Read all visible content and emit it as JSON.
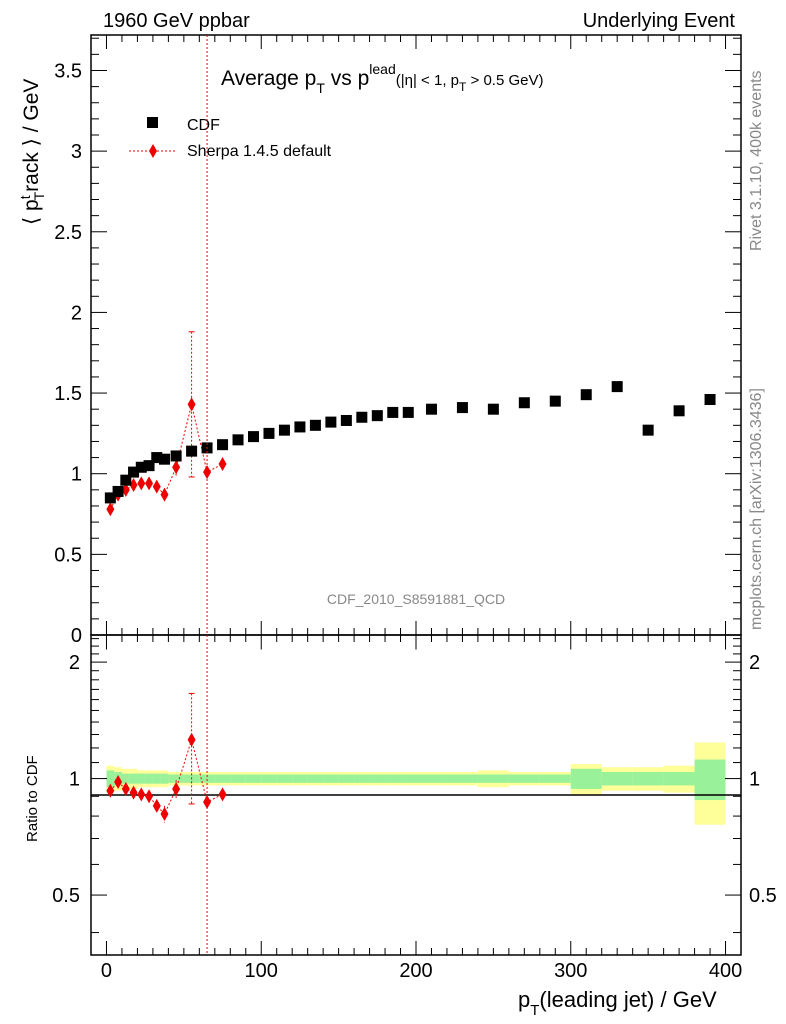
{
  "header": {
    "left": "1960 GeV ppbar",
    "right": "Underlying Event"
  },
  "side": {
    "rivet": "Rivet 3.1.10,  400k events",
    "mcplots": "mcplots.cern.ch [arXiv:1306.3436]"
  },
  "plot": {
    "title_main": "Average p",
    "title_sub_t": "T",
    "title_vs": " vs p",
    "title_lead": "lead",
    "title_cut": "(|η| < 1, p",
    "title_cut_end": " > 0.5 GeV)",
    "ylabel": "⟨ p",
    "ylabel_t": "t",
    "ylabel_T": "T",
    "ylabel_end": "rack ⟩ / GeV",
    "analysis": "CDF_2010_S8591881_QCD",
    "ratio_ylabel": "Ratio to CDF",
    "xlabel": "p",
    "xlabel_sub": "T",
    "xlabel_end": "(leading jet) / GeV",
    "legend": {
      "data": "CDF",
      "mc": "Sherpa 1.4.5 default"
    },
    "xticks": [
      "0",
      "100",
      "200",
      "300",
      "400"
    ],
    "yticks_main": [
      "0",
      "0.5",
      "1",
      "1.5",
      "2",
      "2.5",
      "3",
      "3.5"
    ],
    "yticks_ratio": [
      "0.5",
      "1",
      "2"
    ],
    "yticks_ratio_right": [
      "0.5",
      "1",
      "2"
    ]
  },
  "colors": {
    "data": "#000000",
    "mc": "#ee0000",
    "band_inner": "#99f299",
    "band_outer": "#ffff99"
  },
  "chart_data": {
    "type": "scatter",
    "xlim": [
      -10,
      410
    ],
    "ylim": [
      0,
      3.72
    ],
    "ratio_ylim": [
      0.35,
      2.35
    ],
    "ratio_log": true,
    "vline_x": 65,
    "series": [
      {
        "name": "CDF",
        "x": [
          2.5,
          7.5,
          12.5,
          17.5,
          22.5,
          27.5,
          32.5,
          37.5,
          45,
          55,
          65,
          75,
          85,
          95,
          105,
          115,
          125,
          135,
          145,
          155,
          165,
          175,
          185,
          195,
          210,
          230,
          250,
          270,
          290,
          310,
          330,
          350,
          370,
          390
        ],
        "y": [
          0.85,
          0.89,
          0.96,
          1.01,
          1.04,
          1.05,
          1.1,
          1.09,
          1.11,
          1.14,
          1.16,
          1.18,
          1.21,
          1.23,
          1.25,
          1.27,
          1.29,
          1.3,
          1.32,
          1.33,
          1.35,
          1.36,
          1.38,
          1.38,
          1.4,
          1.41,
          1.4,
          1.44,
          1.45,
          1.49,
          1.54,
          1.27,
          1.39,
          1.46
        ],
        "xerr": [
          2.5,
          2.5,
          2.5,
          2.5,
          2.5,
          2.5,
          2.5,
          2.5,
          5,
          5,
          5,
          5,
          5,
          5,
          5,
          5,
          5,
          5,
          5,
          5,
          5,
          5,
          5,
          5,
          10,
          10,
          10,
          10,
          10,
          10,
          10,
          10,
          10,
          10
        ],
        "rel_err_inner": [
          0.05,
          0.04,
          0.03,
          0.03,
          0.03,
          0.03,
          0.03,
          0.03,
          0.025,
          0.025,
          0.025,
          0.025,
          0.025,
          0.025,
          0.025,
          0.025,
          0.025,
          0.025,
          0.025,
          0.025,
          0.025,
          0.025,
          0.025,
          0.025,
          0.025,
          0.025,
          0.025,
          0.025,
          0.025,
          0.06,
          0.04,
          0.04,
          0.04,
          0.12
        ],
        "rel_err_outer": [
          0.08,
          0.07,
          0.06,
          0.06,
          0.05,
          0.05,
          0.05,
          0.05,
          0.04,
          0.04,
          0.04,
          0.04,
          0.04,
          0.04,
          0.04,
          0.04,
          0.04,
          0.04,
          0.04,
          0.04,
          0.04,
          0.04,
          0.04,
          0.04,
          0.04,
          0.04,
          0.05,
          0.04,
          0.04,
          0.09,
          0.07,
          0.07,
          0.08,
          0.24
        ]
      },
      {
        "name": "Sherpa 1.4.5 default",
        "x": [
          2.5,
          7.5,
          12.5,
          17.5,
          22.5,
          27.5,
          32.5,
          37.5,
          45,
          55,
          65,
          75
        ],
        "y": [
          0.78,
          0.87,
          0.9,
          0.93,
          0.94,
          0.94,
          0.92,
          0.87,
          1.04,
          1.43,
          1.01,
          1.06
        ],
        "yerr": [
          0.02,
          0.02,
          0.02,
          0.02,
          0.02,
          0.02,
          0.03,
          0.04,
          0.06,
          0.45,
          0.02,
          0.02
        ],
        "ratio": [
          0.93,
          0.98,
          0.94,
          0.92,
          0.91,
          0.9,
          0.85,
          0.81,
          0.94,
          1.26,
          0.87,
          0.91
        ],
        "ratio_err": [
          0.02,
          0.02,
          0.02,
          0.02,
          0.02,
          0.02,
          0.03,
          0.04,
          0.05,
          0.4,
          0.02,
          0.02
        ]
      }
    ]
  }
}
